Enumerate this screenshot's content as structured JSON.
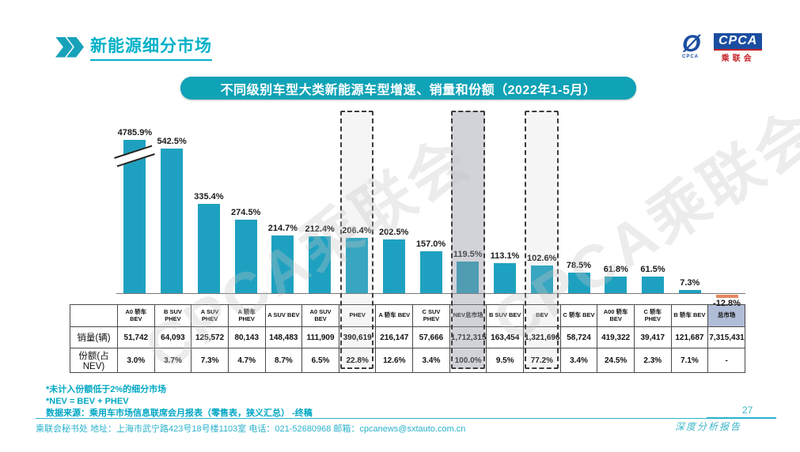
{
  "header": {
    "title": "新能源细分市场"
  },
  "logo": {
    "cpca": "CPCA",
    "sub": "乘联会",
    "small": "CPCA"
  },
  "banner": {
    "title": "不同级别车型大类新能源车型增速、销量和份额（2022年1-5月）"
  },
  "watermark": "CPCA乘联会",
  "chart_data": {
    "type": "bar",
    "title": "不同级别车型大类新能源车型增速、销量和份额（2022年1-5月）",
    "categories": [
      "A0 轿车 BEV",
      "B SUV PHEV",
      "A SUV PHEV",
      "A 轿车 PHEV",
      "A SUV BEV",
      "A0 SUV BEV",
      "PHEV",
      "A 轿车 BEV",
      "C SUV PHEV",
      "NEV总市场",
      "B SUV BEV",
      "BEV",
      "C 轿车 BEV",
      "A00 轿车 BEV",
      "C 轿车 PHEV",
      "B 轿车 BEV",
      "总市场"
    ],
    "series": [
      {
        "name": "增速",
        "unit": "%",
        "values": [
          4785.9,
          542.5,
          335.4,
          274.5,
          214.7,
          212.4,
          206.4,
          202.5,
          157.0,
          119.5,
          113.1,
          102.6,
          78.5,
          61.8,
          61.5,
          7.3,
          -12.8
        ]
      },
      {
        "name": "销量(辆)",
        "values": [
          "51,742",
          "64,093",
          "125,572",
          "80,143",
          "148,483",
          "111,909",
          "390,619",
          "216,147",
          "57,666",
          "1,712,315",
          "163,454",
          "1,321,696",
          "58,724",
          "419,322",
          "39,417",
          "121,687",
          "7,315,431"
        ]
      },
      {
        "name": "份额(占NEV)",
        "values": [
          "3.0%",
          "3.7%",
          "7.3%",
          "4.7%",
          "8.7%",
          "6.5%",
          "22.8%",
          "12.6%",
          "3.4%",
          "100.0%",
          "9.5%",
          "77.2%",
          "3.4%",
          "24.5%",
          "2.3%",
          "7.1%",
          "-"
        ]
      }
    ],
    "highlights": [
      {
        "index": 6,
        "label": "PHEV",
        "style": "light"
      },
      {
        "index": 9,
        "label": "NEV总市场",
        "style": "dark"
      },
      {
        "index": 11,
        "label": "BEV",
        "style": "light"
      }
    ],
    "axis_break_index": 0,
    "bar_color": "#1ea1c0",
    "negative_color": "#e5875f",
    "total_header_bg": "#b0bdd6",
    "legend": "none",
    "grid": false
  },
  "table": {
    "row_labels": [
      "销量(辆)",
      "份额(占NEV)"
    ]
  },
  "footnotes": [
    "*未计入份额低于2%的细分市场",
    "*NEV = BEV + PHEV",
    "数据来源：乘用车市场信息联席会月报表（零售表，狭义汇总） -终稿"
  ],
  "footer": {
    "text": "乘联会秘书处  地址：上海市武宁路423号18号楼1103室 电话：021-52680968  邮箱：cpcanews@sxtauto.com.cn",
    "page": "27",
    "report": "深度分析报告"
  }
}
